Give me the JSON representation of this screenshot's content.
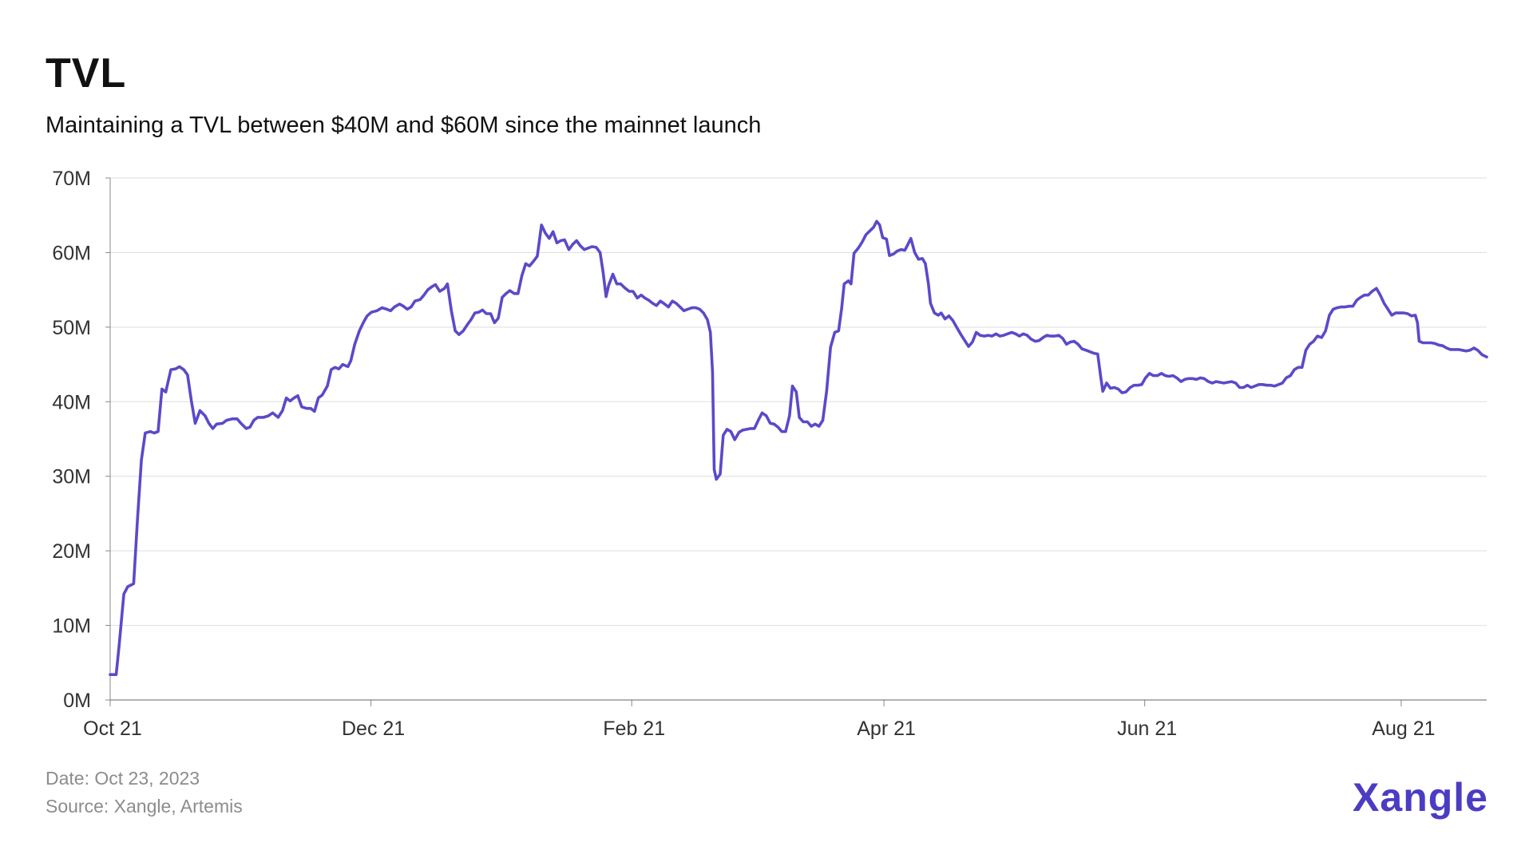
{
  "chart_data": {
    "type": "line",
    "title": "TVL",
    "subtitle": "Maintaining a TVL between $40M and $60M since the mainnet launch",
    "xlabel": "",
    "ylabel": "",
    "ylim": [
      0,
      70
    ],
    "xlim": [
      0,
      322
    ],
    "x_unit": "days since Oct 1",
    "y_ticks": [
      0,
      10,
      20,
      30,
      40,
      50,
      60,
      70
    ],
    "y_tick_labels": [
      "0M",
      "10M",
      "20M",
      "30M",
      "40M",
      "50M",
      "60M",
      "70M"
    ],
    "x_ticks": [
      0,
      61,
      122,
      181,
      242,
      302
    ],
    "x_tick_labels": [
      "Oct 21",
      "Dec 21",
      "Feb 21",
      "Apr 21",
      "Jun 21",
      "Aug 21"
    ],
    "grid": true,
    "legend": "none",
    "line_color": "#5a4ac9",
    "series": [
      {
        "name": "TVL",
        "x_days": [
          0,
          1.4,
          2.1,
          3.2,
          4.1,
          5.5,
          6.4,
          7.3,
          8.2,
          9.4,
          10.3,
          11.2,
          12.1,
          13.0,
          14.2,
          15.3,
          16.2,
          17.2,
          18.1,
          19.0,
          19.9,
          21.0,
          22.2,
          23.1,
          24.0,
          24.9,
          26.3,
          27.2,
          28.6,
          29.7,
          30.6,
          31.8,
          32.7,
          33.6,
          34.5,
          35.9,
          37.0,
          38.0,
          39.3,
          40.3,
          41.2,
          42.1,
          43.0,
          43.9,
          44.8,
          46.0,
          46.9,
          47.8,
          48.7,
          49.6,
          50.8,
          51.7,
          52.6,
          53.5,
          54.4,
          55.6,
          56.3,
          57.2,
          58.3,
          59.2,
          60.1,
          61.1,
          62.4,
          63.6,
          64.7,
          65.6,
          66.5,
          67.7,
          68.6,
          69.5,
          70.4,
          71.3,
          72.5,
          73.4,
          74.3,
          75.2,
          76.1,
          77.1,
          78.2,
          78.9,
          79.8,
          80.7,
          81.6,
          82.6,
          83.5,
          84.4,
          85.3,
          86.2,
          87.1,
          88.0,
          89.0,
          89.9,
          90.8,
          91.7,
          92.6,
          93.5,
          94.5,
          95.4,
          96.3,
          97.2,
          98.1,
          99.0,
          99.9,
          100.9,
          101.8,
          102.7,
          103.6,
          104.5,
          105.4,
          106.3,
          107.3,
          108.2,
          109.1,
          110.0,
          110.9,
          111.8,
          112.7,
          113.7,
          114.6,
          115.3,
          116.0,
          116.6,
          117.6,
          118.5,
          119.4,
          120.3,
          121.4,
          122.3,
          123.3,
          124.2,
          125.1,
          126.0,
          126.9,
          127.8,
          128.7,
          129.7,
          130.6,
          131.5,
          132.4,
          133.3,
          134.2,
          135.1,
          136.1,
          137.0,
          137.9,
          138.8,
          139.7,
          140.4,
          140.9,
          141.3,
          141.8,
          142.7,
          143.4,
          144.3,
          145.2,
          146.1,
          147.1,
          148.0,
          148.9,
          149.8,
          150.7,
          151.6,
          152.5,
          153.5,
          154.4,
          155.3,
          156.2,
          157.1,
          158.0,
          158.9,
          159.6,
          160.5,
          161.2,
          162.1,
          163.1,
          164.0,
          164.9,
          165.8,
          166.7,
          167.6,
          168.5,
          169.5,
          170.4,
          171.1,
          171.7,
          172.7,
          173.3,
          174.0,
          175.0,
          175.9,
          176.8,
          177.7,
          178.6,
          179.3,
          180.0,
          180.7,
          181.6,
          182.3,
          183.2,
          184.1,
          185.0,
          185.9,
          186.6,
          187.3,
          188.2,
          189.1,
          190.0,
          190.7,
          191.4,
          191.9,
          192.8,
          193.7,
          194.4,
          195.3,
          196.2,
          197.1,
          198.1,
          199.0,
          199.9,
          200.8,
          201.7,
          202.6,
          203.5,
          204.5,
          205.4,
          206.3,
          207.2,
          208.1,
          209.0,
          209.9,
          210.9,
          211.8,
          212.7,
          213.6,
          214.5,
          215.4,
          216.4,
          217.3,
          218.2,
          219.1,
          220.0,
          220.9,
          221.9,
          222.8,
          223.7,
          224.6,
          225.5,
          226.4,
          227.3,
          228.3,
          229.2,
          230.1,
          231.0,
          231.7,
          232.2,
          233.1,
          234.0,
          234.9,
          235.8,
          236.7,
          237.6,
          238.6,
          239.5,
          240.4,
          241.3,
          242.2,
          243.1,
          244.0,
          245.0,
          245.9,
          246.8,
          247.7,
          248.6,
          249.5,
          250.5,
          251.4,
          252.3,
          253.2,
          254.1,
          255.0,
          255.9,
          256.9,
          257.8,
          258.7,
          259.6,
          260.5,
          261.4,
          262.3,
          263.3,
          264.2,
          265.1,
          266.0,
          266.9,
          267.8,
          268.7,
          269.6,
          270.6,
          271.5,
          272.4,
          273.3,
          274.2,
          275.1,
          276.1,
          277.0,
          277.9,
          278.8,
          279.7,
          280.6,
          281.5,
          282.4,
          283.4,
          284.3,
          285.2,
          286.1,
          287.0,
          287.9,
          288.8,
          289.8,
          290.7,
          291.6,
          292.5,
          293.4,
          294.3,
          295.2,
          296.2,
          297.1,
          298.0,
          298.9,
          299.8,
          300.7,
          301.6,
          302.6,
          303.5,
          304.4,
          305.3,
          305.8,
          306.2,
          307.1,
          308.1,
          309.0,
          309.9,
          310.8,
          311.7,
          312.6,
          313.5,
          314.5,
          315.4,
          316.3,
          317.2,
          318.1,
          319.0,
          319.9,
          320.9,
          322.0
        ],
        "values": [
          3.4,
          3.4,
          7.3,
          14.2,
          15.2,
          15.6,
          24.4,
          32.2,
          35.8,
          36.0,
          35.8,
          36.0,
          41.7,
          41.3,
          44.3,
          44.4,
          44.7,
          44.3,
          43.6,
          40.1,
          37.1,
          38.8,
          38.1,
          37.1,
          36.4,
          37.0,
          37.1,
          37.5,
          37.7,
          37.7,
          37.1,
          36.4,
          36.6,
          37.5,
          37.9,
          37.9,
          38.1,
          38.5,
          37.9,
          38.8,
          40.5,
          40.1,
          40.5,
          40.8,
          39.3,
          39.1,
          39.1,
          38.7,
          40.5,
          40.9,
          42.1,
          44.3,
          44.6,
          44.4,
          45.0,
          44.7,
          45.5,
          47.7,
          49.5,
          50.6,
          51.5,
          52.0,
          52.2,
          52.6,
          52.4,
          52.2,
          52.7,
          53.1,
          52.8,
          52.4,
          52.7,
          53.5,
          53.7,
          54.3,
          55.0,
          55.4,
          55.7,
          54.8,
          55.2,
          55.8,
          52.2,
          49.5,
          49.0,
          49.5,
          50.3,
          51.0,
          51.9,
          52.0,
          52.3,
          51.8,
          51.8,
          50.6,
          51.2,
          54.0,
          54.5,
          54.9,
          54.5,
          54.5,
          56.9,
          58.5,
          58.2,
          58.8,
          59.5,
          63.7,
          62.6,
          61.9,
          62.8,
          61.3,
          61.6,
          61.7,
          60.4,
          61.1,
          61.6,
          60.9,
          60.4,
          60.6,
          60.8,
          60.7,
          60.0,
          57.4,
          54.1,
          55.6,
          57.1,
          55.8,
          55.8,
          55.3,
          54.8,
          54.8,
          53.9,
          54.3,
          53.9,
          53.6,
          53.2,
          52.9,
          53.5,
          53.1,
          52.7,
          53.5,
          53.2,
          52.7,
          52.2,
          52.4,
          52.6,
          52.6,
          52.4,
          51.9,
          51.0,
          49.3,
          44.0,
          30.9,
          29.6,
          30.3,
          35.5,
          36.3,
          36.0,
          34.9,
          35.9,
          36.2,
          36.3,
          36.4,
          36.4,
          37.5,
          38.5,
          38.1,
          37.1,
          37.0,
          36.6,
          36.0,
          36.0,
          38.1,
          42.1,
          41.3,
          37.9,
          37.3,
          37.3,
          36.7,
          37.0,
          36.7,
          37.5,
          41.4,
          47.3,
          49.3,
          49.5,
          52.5,
          55.8,
          56.2,
          55.8,
          59.9,
          60.6,
          61.4,
          62.4,
          62.9,
          63.4,
          64.2,
          63.7,
          62.0,
          61.8,
          59.6,
          59.8,
          60.2,
          60.4,
          60.3,
          61.1,
          61.9,
          60.0,
          59.1,
          59.2,
          58.5,
          55.8,
          53.2,
          51.9,
          51.6,
          51.9,
          51.1,
          51.5,
          50.9,
          49.9,
          49.0,
          48.2,
          47.4,
          48.0,
          49.3,
          48.9,
          48.8,
          48.9,
          48.8,
          49.1,
          48.8,
          48.9,
          49.1,
          49.3,
          49.1,
          48.8,
          49.1,
          48.9,
          48.4,
          48.1,
          48.2,
          48.6,
          48.9,
          48.8,
          48.8,
          48.9,
          48.5,
          47.7,
          48.0,
          48.1,
          47.7,
          47.1,
          46.9,
          46.7,
          46.5,
          46.4,
          43.4,
          41.4,
          42.5,
          41.8,
          41.9,
          41.7,
          41.2,
          41.3,
          41.9,
          42.2,
          42.2,
          42.3,
          43.2,
          43.8,
          43.5,
          43.5,
          43.8,
          43.5,
          43.4,
          43.5,
          43.2,
          42.7,
          43.0,
          43.1,
          43.1,
          43.0,
          43.2,
          43.1,
          42.7,
          42.5,
          42.7,
          42.6,
          42.5,
          42.6,
          42.7,
          42.5,
          41.9,
          41.9,
          42.2,
          41.9,
          42.1,
          42.3,
          42.3,
          42.2,
          42.2,
          42.1,
          42.3,
          42.5,
          43.2,
          43.5,
          44.3,
          44.6,
          44.6,
          46.9,
          47.7,
          48.1,
          48.8,
          48.6,
          49.5,
          51.6,
          52.4,
          52.6,
          52.7,
          52.7,
          52.8,
          52.8,
          53.6,
          54.0,
          54.3,
          54.3,
          54.8,
          55.2,
          54.3,
          53.2,
          52.4,
          51.6,
          51.9,
          51.9,
          51.9,
          51.8,
          51.5,
          51.6,
          50.6,
          48.1,
          47.9,
          47.9,
          47.9,
          47.8,
          47.6,
          47.5,
          47.2,
          47.0,
          47.0,
          47.0,
          46.9,
          46.8,
          46.9,
          47.2,
          46.9,
          46.3,
          46.0
        ]
      }
    ],
    "footer": {
      "date": "Date: Oct 23, 2023",
      "source": "Source: Xangle, Artemis"
    },
    "brand": {
      "logo_text": "Xangle",
      "color": "#4b3cc4"
    }
  }
}
